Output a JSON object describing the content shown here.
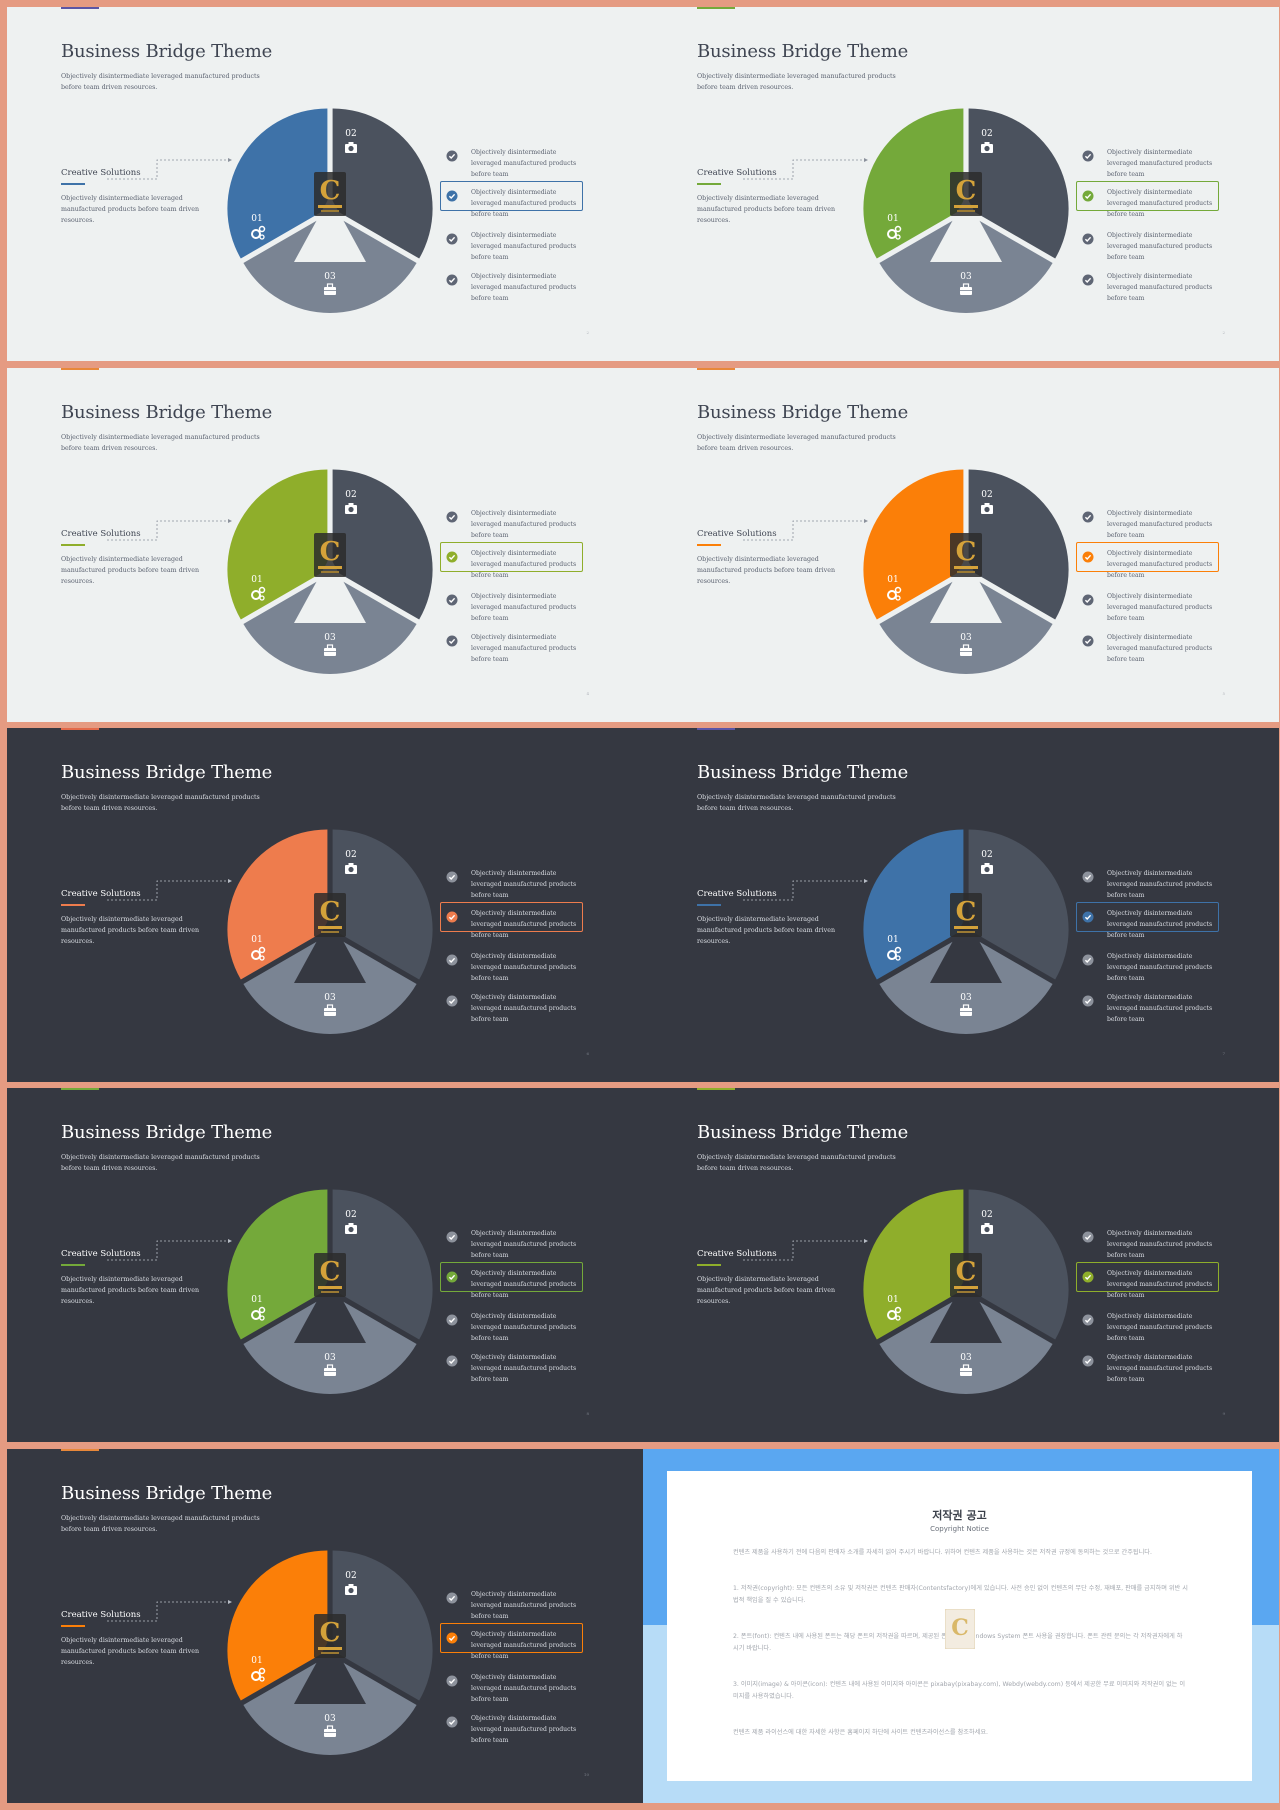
{
  "slides": [
    {
      "theme": "light",
      "accent": "#3e72a8",
      "topbar": "#5b55a5",
      "page": "2"
    },
    {
      "theme": "light",
      "accent": "#74a93a",
      "topbar": "#74a93a",
      "page": "2"
    },
    {
      "theme": "light",
      "accent": "#8fae2b",
      "topbar": "#e8883a",
      "page": "4"
    },
    {
      "theme": "light",
      "accent": "#fb7f08",
      "topbar": "#e8883a",
      "page": "5"
    },
    {
      "theme": "dark",
      "accent": "#ee7c4d",
      "topbar": "#e36a4a",
      "page": "6"
    },
    {
      "theme": "dark",
      "accent": "#3e72a8",
      "topbar": "#5b55a5",
      "page": "7"
    },
    {
      "theme": "dark",
      "accent": "#74a93a",
      "topbar": "#74a93a",
      "page": "8"
    },
    {
      "theme": "dark",
      "accent": "#8fae2b",
      "topbar": "#8fae2b",
      "page": "9"
    },
    {
      "theme": "dark",
      "accent": "#fb7f08",
      "topbar": "#e8883a",
      "page": "10"
    }
  ],
  "content": {
    "title": "Business Bridge Theme",
    "subtitle": "Objectively disintermediate leveraged manufactured products before team driven resources.",
    "left_title": "Creative Solutions",
    "left_desc": "Objectively disintermediate leveraged manufactured products before team  driven resources.",
    "pie_labels": [
      "01",
      "02",
      "03"
    ],
    "pie_icons": [
      "gears-icon",
      "camera-icon",
      "briefcase-icon"
    ],
    "items": [
      "Objectively disintermediate leveraged manufactured products before team",
      "Objectively disintermediate leveraged manufactured products before team",
      "Objectively disintermediate leveraged manufactured products before team",
      "Objectively disintermediate leveraged manufactured products before team"
    ],
    "highlighted_item": 1
  },
  "pie_colors": {
    "light": {
      "segment2": "#4b525e",
      "segment3": "#7a8493",
      "item_icon": "#5f6675"
    },
    "dark": {
      "segment2": "#4b525e",
      "segment3": "#7a8493",
      "item_icon": "#8d929c"
    }
  },
  "copyright": {
    "title": "저작권 공고",
    "subtitle": "Copyright Notice",
    "paragraphs": [
      "컨텐츠 제품을 사용하기 전에 다음의 판매자 소개를 자세히 읽어 주시기 바랍니다. 위하여 컨텐츠 제품을 사용하는 것은 저작권 규정에 동의하는 것으로 간주됩니다.",
      "1. 저작권(copyright): 모든 컨텐츠의 소유 및 저작권은 컨텐츠 판매자(Contentsfactory)에게 있습니다. 사전 승인 없이 컨텐츠의 무단 수정, 재배포, 판매를 금지하며 위반 시 법적 책임을 질 수 있습니다.",
      "2. 폰트(font): 컨텐츠 내에 사용된 폰트는 해당 폰트의 저작권을 따르며, 제공된 폰트 외의 Windows System 폰트 사용을 권장합니다. 폰트 관련 문의는 각 저작권자에게 하시기 바랍니다.",
      "3. 이미지(image) & 아이콘(icon): 컨텐츠 내에 사용된 이미지와 아이콘은 pixabay(pixabay.com), Webdy(webdy.com) 등에서 제공한 무료 이미지와 저작권이 없는 이미지를 사용하였습니다.",
      "컨텐츠 제품 라이선스에 대한 자세한 사항은 홈페이지 하단에 사이트 컨텐츠라이선스를 참조하세요."
    ]
  }
}
